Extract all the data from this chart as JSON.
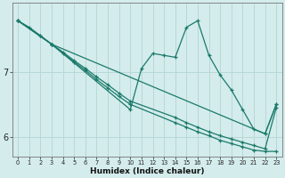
{
  "xlabel": "Humidex (Indice chaleur)",
  "background_color": "#d4ecec",
  "grid_color": "#b8d8d8",
  "line_color": "#1a7a6a",
  "xlim": [
    -0.5,
    23.5
  ],
  "ylim": [
    5.7,
    8.05
  ],
  "yticks": [
    6,
    7
  ],
  "xticks": [
    0,
    1,
    2,
    3,
    4,
    5,
    6,
    7,
    8,
    9,
    10,
    11,
    12,
    13,
    14,
    15,
    16,
    17,
    18,
    19,
    20,
    21,
    22,
    23
  ],
  "series": [
    {
      "x": [
        0,
        1,
        2,
        3,
        4,
        5,
        6,
        7,
        8,
        9,
        10,
        14,
        15,
        16,
        17,
        18,
        19,
        20,
        21,
        22,
        23
      ],
      "y": [
        7.78,
        7.68,
        7.55,
        7.42,
        7.28,
        7.15,
        7.02,
        6.88,
        6.75,
        6.62,
        6.5,
        6.22,
        6.15,
        6.08,
        6.02,
        5.95,
        5.9,
        5.85,
        5.8,
        5.78,
        5.78
      ]
    },
    {
      "x": [
        0,
        2,
        3,
        4,
        5,
        6,
        7,
        8,
        9,
        10,
        14,
        15,
        16,
        17,
        18,
        19,
        20,
        21,
        22,
        23
      ],
      "y": [
        7.78,
        7.55,
        7.42,
        7.3,
        7.17,
        7.05,
        6.92,
        6.8,
        6.67,
        6.55,
        6.3,
        6.22,
        6.15,
        6.08,
        6.02,
        5.97,
        5.92,
        5.87,
        5.82,
        6.45
      ]
    },
    {
      "x": [
        0,
        3,
        10,
        11,
        12,
        13,
        14,
        15,
        16,
        17,
        18,
        19,
        20,
        21,
        22,
        23
      ],
      "y": [
        7.78,
        7.42,
        6.42,
        7.05,
        7.28,
        7.25,
        7.22,
        7.68,
        7.78,
        7.25,
        6.95,
        6.72,
        6.42,
        6.12,
        6.05,
        6.5
      ]
    },
    {
      "x": [
        0,
        3,
        22,
        23
      ],
      "y": [
        7.78,
        7.42,
        6.05,
        6.5
      ]
    }
  ]
}
